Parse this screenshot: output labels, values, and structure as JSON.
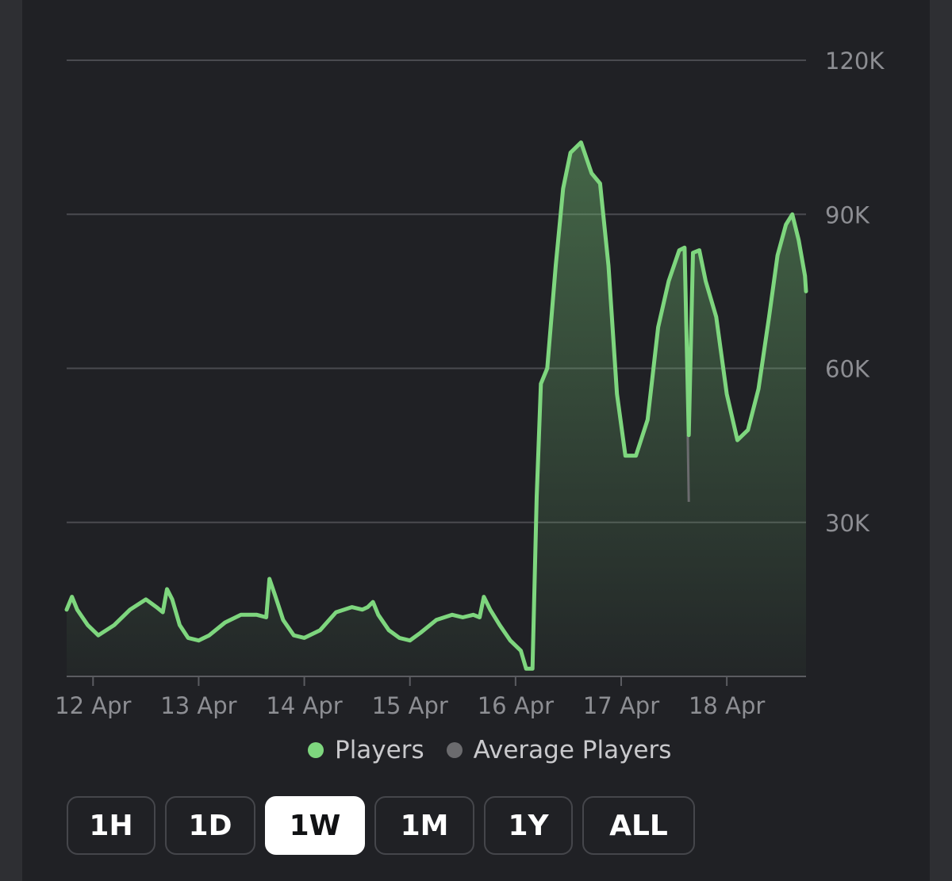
{
  "chart_data": {
    "type": "area",
    "ylim": [
      0,
      120000
    ],
    "y_ticks": [
      30000,
      60000,
      90000,
      120000
    ],
    "y_tick_labels": [
      "30K",
      "60K",
      "90K",
      "120K"
    ],
    "x_tick_labels": [
      "12 Apr",
      "13 Apr",
      "14 Apr",
      "15 Apr",
      "16 Apr",
      "17 Apr",
      "18 Apr"
    ],
    "x_range_days": [
      11.75,
      18.75
    ],
    "grid": true,
    "legend_placement": "bottom-center",
    "series": [
      {
        "name": "Players",
        "color": "#7ed67e",
        "points": [
          [
            11.75,
            13000
          ],
          [
            11.8,
            15500
          ],
          [
            11.85,
            13000
          ],
          [
            11.95,
            10000
          ],
          [
            12.05,
            8000
          ],
          [
            12.2,
            10000
          ],
          [
            12.35,
            13000
          ],
          [
            12.5,
            15000
          ],
          [
            12.6,
            13500
          ],
          [
            12.66,
            12500
          ],
          [
            12.7,
            17000
          ],
          [
            12.75,
            15000
          ],
          [
            12.82,
            10000
          ],
          [
            12.9,
            7500
          ],
          [
            13.0,
            7000
          ],
          [
            13.1,
            8000
          ],
          [
            13.25,
            10500
          ],
          [
            13.4,
            12000
          ],
          [
            13.55,
            12000
          ],
          [
            13.64,
            11500
          ],
          [
            13.67,
            19000
          ],
          [
            13.72,
            16000
          ],
          [
            13.8,
            11000
          ],
          [
            13.9,
            8000
          ],
          [
            14.0,
            7500
          ],
          [
            14.15,
            9000
          ],
          [
            14.3,
            12500
          ],
          [
            14.45,
            13500
          ],
          [
            14.55,
            13000
          ],
          [
            14.6,
            13500
          ],
          [
            14.65,
            14500
          ],
          [
            14.7,
            12000
          ],
          [
            14.8,
            9000
          ],
          [
            14.9,
            7500
          ],
          [
            15.0,
            7000
          ],
          [
            15.1,
            8500
          ],
          [
            15.25,
            11000
          ],
          [
            15.4,
            12000
          ],
          [
            15.5,
            11500
          ],
          [
            15.6,
            12000
          ],
          [
            15.66,
            11500
          ],
          [
            15.7,
            15500
          ],
          [
            15.76,
            13000
          ],
          [
            15.85,
            10000
          ],
          [
            15.95,
            7000
          ],
          [
            16.05,
            5000
          ],
          [
            16.1,
            1500
          ],
          [
            16.16,
            1500
          ],
          [
            16.2,
            35000
          ],
          [
            16.24,
            57000
          ],
          [
            16.3,
            60000
          ],
          [
            16.38,
            80000
          ],
          [
            16.45,
            95000
          ],
          [
            16.52,
            102000
          ],
          [
            16.62,
            104000
          ],
          [
            16.72,
            98000
          ],
          [
            16.8,
            96000
          ],
          [
            16.88,
            80000
          ],
          [
            16.96,
            55000
          ],
          [
            17.04,
            43000
          ],
          [
            17.14,
            43000
          ],
          [
            17.25,
            50000
          ],
          [
            17.35,
            68000
          ],
          [
            17.45,
            77000
          ],
          [
            17.55,
            83000
          ],
          [
            17.6,
            83500
          ],
          [
            17.64,
            47000
          ],
          [
            17.68,
            82500
          ],
          [
            17.74,
            83000
          ],
          [
            17.8,
            77000
          ],
          [
            17.9,
            70000
          ],
          [
            18.0,
            55000
          ],
          [
            18.1,
            46000
          ],
          [
            18.2,
            48000
          ],
          [
            18.3,
            56000
          ],
          [
            18.4,
            70000
          ],
          [
            18.48,
            82000
          ],
          [
            18.56,
            88000
          ],
          [
            18.62,
            90000
          ],
          [
            18.68,
            85000
          ],
          [
            18.74,
            78000
          ],
          [
            18.75,
            75000
          ]
        ]
      },
      {
        "name": "Average Players",
        "color": "#6b6b6e",
        "points": [
          [
            17.63,
            47000
          ],
          [
            17.64,
            34000
          ]
        ]
      }
    ]
  }
}
